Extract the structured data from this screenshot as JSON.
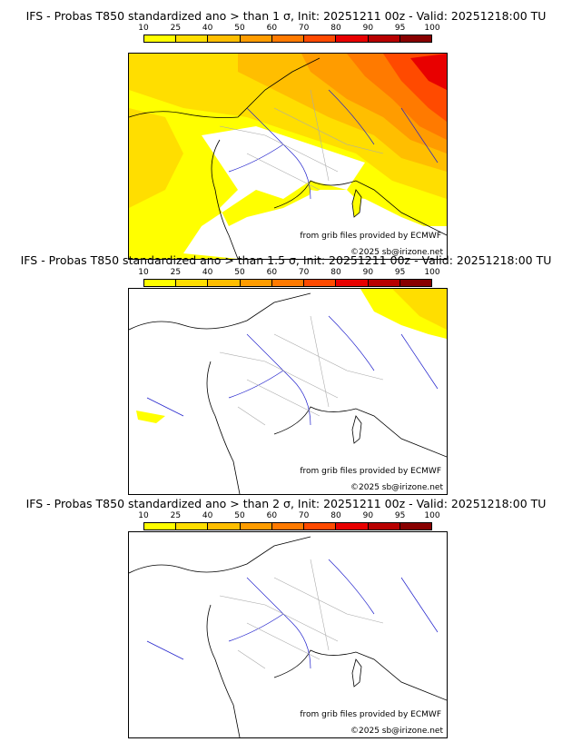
{
  "panels": [
    {
      "title": "IFS - Probas T850  standardized ano > than 1 σ, Init: 20251211 00z - Valid: 20251218:00 TU",
      "threshold_sigma": 1,
      "source_text": "from grib files provided by ECMWF",
      "copyright_text": "©2025 sb@irizone.net"
    },
    {
      "title": "IFS - Probas T850  standardized ano > than 1.5 σ, Init: 20251211 00z - Valid: 20251218:00 TU",
      "threshold_sigma": 1.5,
      "source_text": "from grib files provided by ECMWF",
      "copyright_text": "©2025 sb@irizone.net"
    },
    {
      "title": "IFS - Probas T850  standardized ano > than 2 σ, Init: 20251211 00z - Valid: 20251218:00 TU",
      "threshold_sigma": 2,
      "source_text": "from grib files provided by ECMWF",
      "copyright_text": "©2025 sb@irizone.net"
    }
  ],
  "colorbar": {
    "labels": [
      "10",
      "25",
      "40",
      "50",
      "60",
      "70",
      "80",
      "90",
      "95",
      "100"
    ],
    "colors": [
      "#ffff00",
      "#ffde00",
      "#ffbe00",
      "#ff9c00",
      "#ff7a00",
      "#ff4a00",
      "#e80000",
      "#b80000",
      "#880000"
    ]
  },
  "colors": {
    "coast": "#000000",
    "rivers": "#2020cc",
    "borders": "#aaaaaa"
  }
}
